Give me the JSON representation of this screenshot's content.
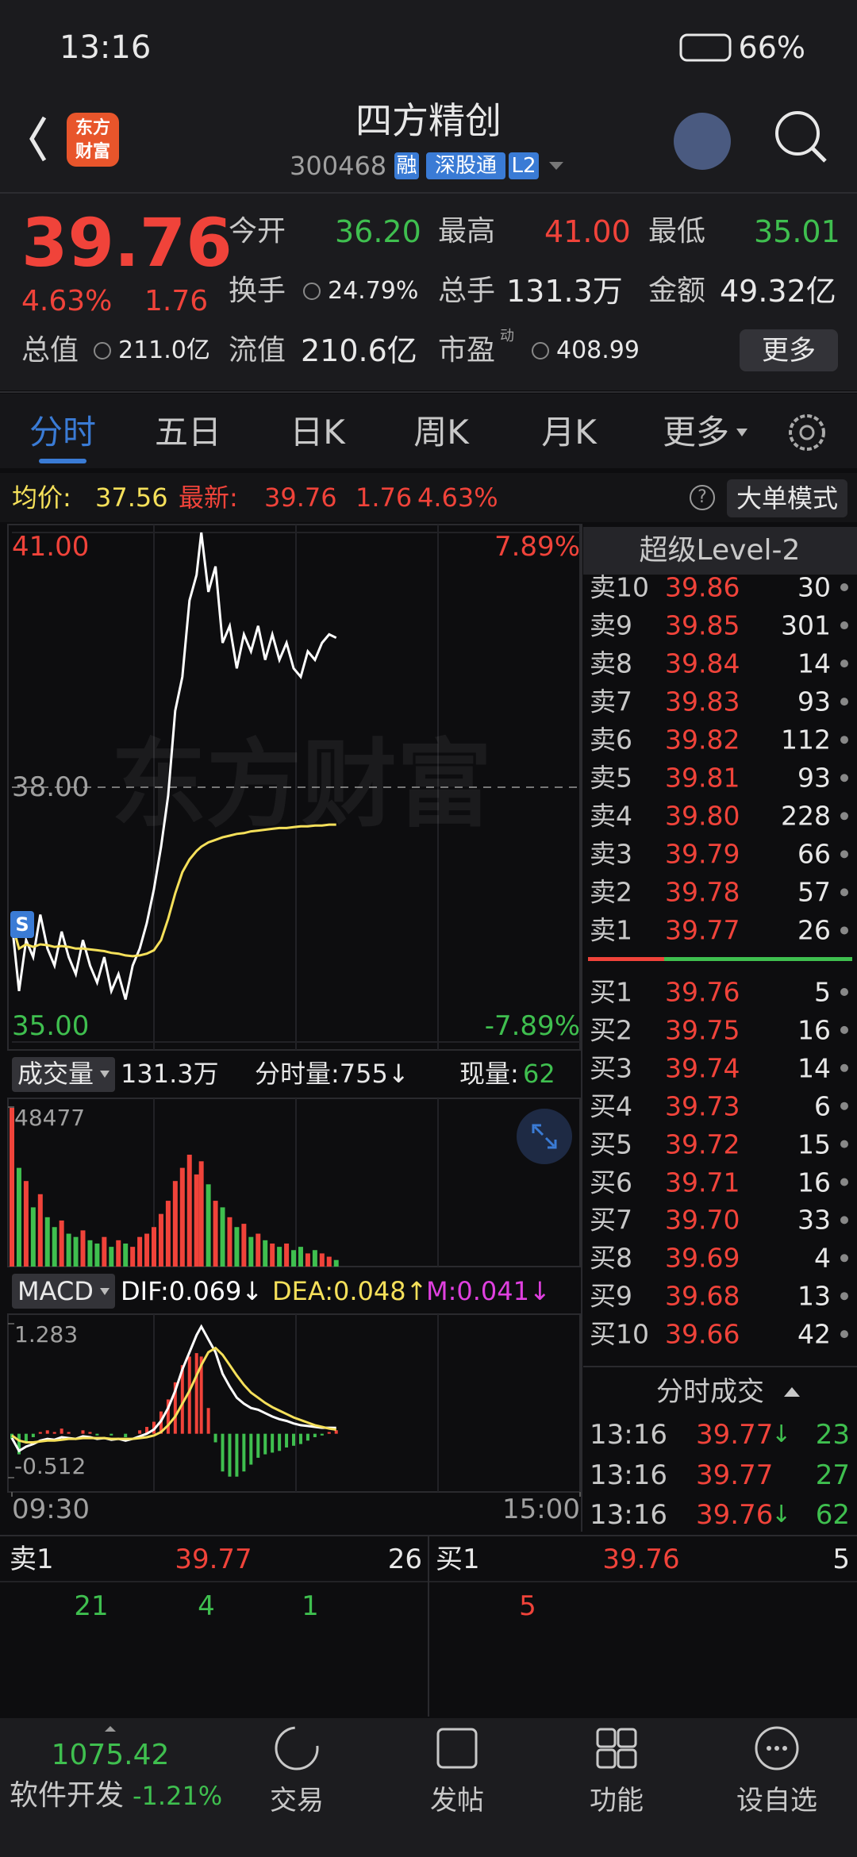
{
  "theme": {
    "up": "#f0433a",
    "down": "#3fbf4f",
    "text": "#e8e8e8",
    "muted": "#a0a0a0",
    "accent": "#3a7bd5",
    "avg": "#f5e05a",
    "magenta": "#e040e0"
  },
  "status_bar": {
    "time": "13:16",
    "battery": "66%"
  },
  "header": {
    "logo": [
      "东方",
      "财富"
    ],
    "title": "四方精创",
    "code": "300468",
    "tags": [
      "融",
      "深股通",
      "L2"
    ]
  },
  "quote": {
    "price": "39.76",
    "change_pct": "4.63%",
    "change": "1.76",
    "fields": [
      {
        "label": "今开",
        "value": "36.20",
        "tone": "down"
      },
      {
        "label": "最高",
        "value": "41.00",
        "tone": "up"
      },
      {
        "label": "最低",
        "value": "35.01",
        "tone": "down"
      },
      {
        "label": "换手",
        "value": "24.79%",
        "tone": "text"
      },
      {
        "label": "总手",
        "value": "131.3万",
        "tone": "text"
      },
      {
        "label": "金额",
        "value": "49.32亿",
        "tone": "text"
      },
      {
        "label": "总值",
        "value": "211.0亿",
        "tone": "text"
      },
      {
        "label": "流值",
        "value": "210.6亿",
        "tone": "text"
      },
      {
        "label": "市盈",
        "value": "408.99",
        "tone": "text",
        "note": "动"
      }
    ],
    "more": "更多"
  },
  "tabs": {
    "items": [
      "分时",
      "五日",
      "日K",
      "周K",
      "月K",
      "更多"
    ],
    "active": 0
  },
  "info_bar": {
    "avg_label": "均价:",
    "avg": "37.56",
    "last_label": "最新:",
    "last": "39.76",
    "change": "1.76",
    "change_pct": "4.63%",
    "help": "?",
    "mode": "大单模式"
  },
  "chart_data": [
    {
      "type": "line",
      "watermark": "东方财富",
      "marker": "S",
      "x": [
        0,
        3,
        6,
        9,
        12,
        15,
        18,
        21,
        24,
        27,
        30,
        33,
        36,
        39,
        42,
        45,
        48,
        51,
        54,
        57,
        60,
        63,
        66,
        69,
        72,
        75,
        78,
        80,
        83,
        86,
        89,
        92,
        95,
        98,
        101,
        104,
        107,
        110,
        113,
        116,
        119,
        122,
        125,
        128,
        131,
        134,
        137
      ],
      "xlim": [
        0,
        240
      ],
      "ylim": [
        35,
        41
      ],
      "yticks": [
        {
          "value": 35,
          "label": "35.00"
        },
        {
          "value": 38,
          "label": "38.00"
        },
        {
          "value": 41,
          "label": "41.00"
        }
      ],
      "y2lim": [
        -7.89,
        7.89
      ],
      "y2ticks": [
        {
          "value": -7.89,
          "label": "-7.89%"
        },
        {
          "value": 7.89,
          "label": "7.89%"
        }
      ],
      "series": [
        {
          "name": "价格",
          "color": "#ffffff",
          "values": [
            36.4,
            35.6,
            36.2,
            36.0,
            36.5,
            36.1,
            35.9,
            36.3,
            36.0,
            35.8,
            36.2,
            35.9,
            35.7,
            36.0,
            35.6,
            35.8,
            35.5,
            35.9,
            36.1,
            36.4,
            36.8,
            37.3,
            37.9,
            38.9,
            39.3,
            40.2,
            40.5,
            41.0,
            40.3,
            40.6,
            39.7,
            39.9,
            39.4,
            39.8,
            39.6,
            39.9,
            39.5,
            39.8,
            39.5,
            39.7,
            39.4,
            39.3,
            39.6,
            39.5,
            39.7,
            39.8,
            39.76
          ]
        },
        {
          "name": "均价",
          "color": "#f5e05a",
          "values": [
            36.4,
            36.1,
            36.15,
            36.12,
            36.15,
            36.14,
            36.12,
            36.13,
            36.12,
            36.1,
            36.1,
            36.09,
            36.08,
            36.07,
            36.05,
            36.04,
            36.02,
            36.01,
            36.02,
            36.04,
            36.08,
            36.2,
            36.45,
            36.75,
            37.0,
            37.15,
            37.25,
            37.3,
            37.35,
            37.38,
            37.41,
            37.43,
            37.45,
            37.46,
            37.48,
            37.49,
            37.5,
            37.51,
            37.52,
            37.52,
            37.53,
            37.54,
            37.54,
            37.55,
            37.55,
            37.56,
            37.56
          ]
        }
      ]
    },
    {
      "type": "bar",
      "label": "成交量",
      "total": "131.3万",
      "tick_volume": "分时量:755↓",
      "current_label": "现量:",
      "current": "62",
      "x": [
        0,
        3,
        6,
        9,
        12,
        15,
        18,
        21,
        24,
        27,
        30,
        33,
        36,
        39,
        42,
        45,
        48,
        51,
        54,
        57,
        60,
        63,
        66,
        69,
        72,
        75,
        78,
        80,
        83,
        86,
        89,
        92,
        95,
        98,
        101,
        104,
        107,
        110,
        113,
        116,
        119,
        122,
        125,
        128,
        131,
        134,
        137
      ],
      "xlim": [
        0,
        240
      ],
      "values": [
        48477,
        30000,
        26000,
        18000,
        22000,
        15000,
        12000,
        14000,
        10000,
        9000,
        11000,
        8000,
        7000,
        9000,
        6000,
        8000,
        7000,
        6000,
        9000,
        10000,
        12000,
        16000,
        20000,
        26000,
        30000,
        34000,
        28000,
        32000,
        25000,
        20000,
        18000,
        15000,
        12000,
        13000,
        9000,
        10000,
        8000,
        7000,
        6000,
        7000,
        5000,
        6000,
        4000,
        5000,
        4000,
        3000,
        2000
      ],
      "ylim": [
        0,
        48477
      ],
      "yticks": [
        48477
      ]
    },
    {
      "type": "macd",
      "label": "MACD",
      "dif_label": "DIF:0.069↓",
      "dea_label": "DEA:0.048↑",
      "m_label": "M:0.041↓",
      "x": [
        0,
        3,
        6,
        9,
        12,
        15,
        18,
        21,
        24,
        27,
        30,
        33,
        36,
        39,
        42,
        45,
        48,
        51,
        54,
        57,
        60,
        63,
        66,
        69,
        72,
        75,
        78,
        80,
        83,
        86,
        89,
        92,
        95,
        98,
        101,
        104,
        107,
        110,
        113,
        116,
        119,
        122,
        125,
        128,
        131,
        134,
        137
      ],
      "xlim": [
        0,
        240
      ],
      "xticks": [
        {
          "value": 0,
          "label": "09:30"
        },
        {
          "value": 240,
          "label": "15:00"
        }
      ],
      "ylim": [
        -0.512,
        1.283
      ],
      "yticks": [
        {
          "value": -0.512,
          "label": "-0.512"
        },
        1.283
      ],
      "series": [
        {
          "name": "DIF",
          "color": "#ffffff",
          "values": [
            -0.05,
            -0.2,
            -0.15,
            -0.12,
            -0.08,
            -0.06,
            -0.07,
            -0.04,
            -0.05,
            -0.06,
            -0.03,
            -0.04,
            -0.06,
            -0.05,
            -0.07,
            -0.06,
            -0.08,
            -0.06,
            -0.03,
            0.0,
            0.05,
            0.15,
            0.3,
            0.5,
            0.75,
            0.95,
            1.15,
            1.25,
            1.1,
            0.95,
            0.7,
            0.55,
            0.42,
            0.35,
            0.3,
            0.28,
            0.24,
            0.2,
            0.17,
            0.15,
            0.12,
            0.1,
            0.09,
            0.08,
            0.07,
            0.07,
            0.069
          ]
        },
        {
          "name": "DEA",
          "color": "#f5e05a",
          "values": [
            -0.02,
            -0.08,
            -0.1,
            -0.1,
            -0.09,
            -0.08,
            -0.08,
            -0.07,
            -0.06,
            -0.06,
            -0.05,
            -0.05,
            -0.05,
            -0.05,
            -0.06,
            -0.06,
            -0.06,
            -0.06,
            -0.05,
            -0.04,
            -0.02,
            0.02,
            0.1,
            0.2,
            0.35,
            0.5,
            0.68,
            0.8,
            0.95,
            1.0,
            0.92,
            0.8,
            0.68,
            0.57,
            0.48,
            0.42,
            0.36,
            0.31,
            0.27,
            0.23,
            0.19,
            0.16,
            0.13,
            0.1,
            0.08,
            0.06,
            0.048
          ]
        },
        {
          "name": "M",
          "color": "#f0433a",
          "values": [
            -0.06,
            -0.24,
            -0.1,
            -0.04,
            0.02,
            0.04,
            0.02,
            0.06,
            0.02,
            0,
            0.04,
            0.02,
            -0.02,
            0,
            -0.02,
            0,
            -0.04,
            0,
            0.04,
            0.08,
            0.14,
            0.26,
            0.4,
            0.6,
            0.8,
            0.9,
            0.94,
            0.9,
            0.3,
            -0.1,
            -0.44,
            -0.5,
            -0.5,
            -0.44,
            -0.36,
            -0.28,
            -0.24,
            -0.22,
            -0.2,
            -0.16,
            -0.14,
            -0.12,
            -0.08,
            -0.04,
            -0.02,
            0.02,
            0.041
          ]
        }
      ]
    }
  ],
  "order_book": {
    "title": "超级Level-2",
    "asks": [
      {
        "label": "卖10",
        "price": "39.86",
        "volume": "30"
      },
      {
        "label": "卖9",
        "price": "39.85",
        "volume": "301"
      },
      {
        "label": "卖8",
        "price": "39.84",
        "volume": "14"
      },
      {
        "label": "卖7",
        "price": "39.83",
        "volume": "93"
      },
      {
        "label": "卖6",
        "price": "39.82",
        "volume": "112"
      },
      {
        "label": "卖5",
        "price": "39.81",
        "volume": "93"
      },
      {
        "label": "卖4",
        "price": "39.80",
        "volume": "228"
      },
      {
        "label": "卖3",
        "price": "39.79",
        "volume": "66"
      },
      {
        "label": "卖2",
        "price": "39.78",
        "volume": "57"
      },
      {
        "label": "卖1",
        "price": "39.77",
        "volume": "26"
      }
    ],
    "bids": [
      {
        "label": "买1",
        "price": "39.76",
        "volume": "5"
      },
      {
        "label": "买2",
        "price": "39.75",
        "volume": "16"
      },
      {
        "label": "买3",
        "price": "39.74",
        "volume": "14"
      },
      {
        "label": "买4",
        "price": "39.73",
        "volume": "6"
      },
      {
        "label": "买5",
        "price": "39.72",
        "volume": "15"
      },
      {
        "label": "买6",
        "price": "39.71",
        "volume": "16"
      },
      {
        "label": "买7",
        "price": "39.70",
        "volume": "33"
      },
      {
        "label": "买8",
        "price": "39.69",
        "volume": "4"
      },
      {
        "label": "买9",
        "price": "39.68",
        "volume": "13"
      },
      {
        "label": "买10",
        "price": "39.66",
        "volume": "42"
      }
    ]
  },
  "trades": {
    "title": "分时成交",
    "rows": [
      {
        "time": "13:16",
        "price": "39.77",
        "arrow": "↓",
        "volume": "23"
      },
      {
        "time": "13:16",
        "price": "39.77",
        "volume": "27"
      },
      {
        "time": "13:16",
        "price": "39.76",
        "arrow": "↓",
        "volume": "62"
      }
    ]
  },
  "best_quotes": {
    "ask": {
      "label": "卖1",
      "price": "39.77",
      "volume": "26",
      "orders": [
        "21",
        "4",
        "1"
      ]
    },
    "bid": {
      "label": "买1",
      "price": "39.76",
      "volume": "5",
      "orders": [
        "5"
      ]
    }
  },
  "bottom_nav": {
    "index_value": "1075.42",
    "index_name": "软件开发",
    "index_change": "-1.21%",
    "items": [
      "交易",
      "发帖",
      "功能",
      "设自选"
    ]
  }
}
